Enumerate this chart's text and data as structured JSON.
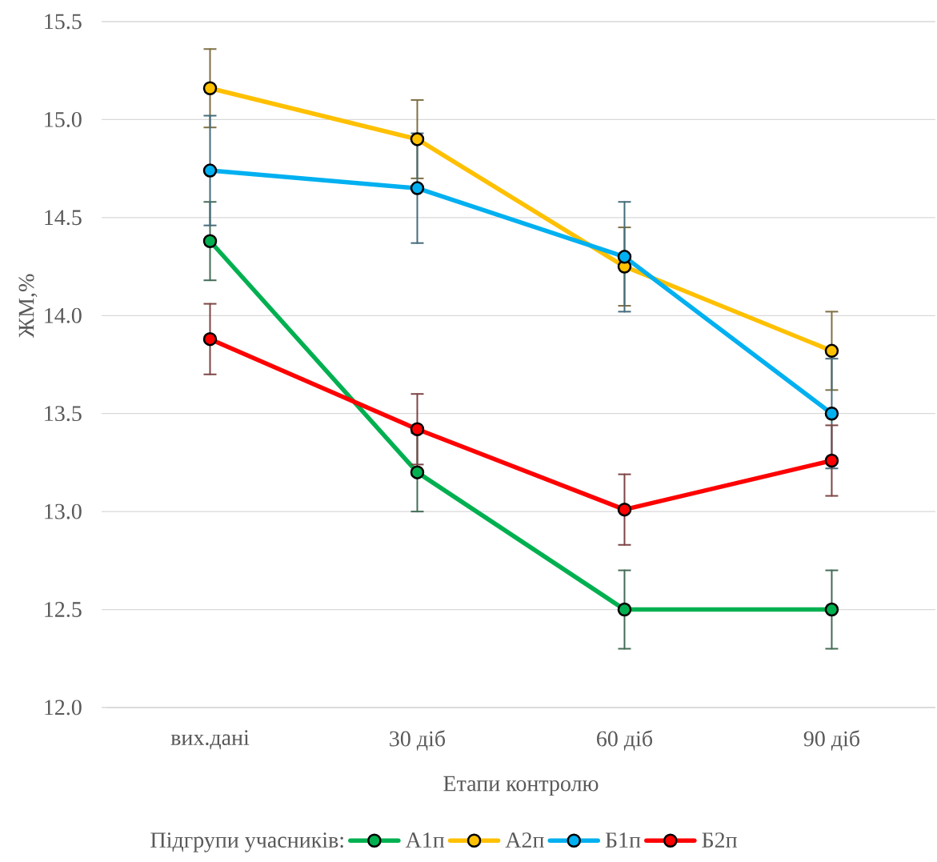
{
  "chart_data": {
    "type": "line",
    "xlabel": "Етапи контролю",
    "ylabel": "ЖМ,%",
    "legend_title": "Підгрупи учасників:",
    "categories": [
      "вих.дані",
      "30 діб",
      "60 діб",
      "90 діб"
    ],
    "series": [
      {
        "name": "А1п",
        "color": "#00b050",
        "values": [
          14.38,
          13.2,
          12.5,
          12.5
        ],
        "errors": [
          0.2,
          0.2,
          0.2,
          0.2
        ]
      },
      {
        "name": "А2п",
        "color": "#ffc000",
        "values": [
          15.16,
          14.9,
          14.25,
          13.82
        ],
        "errors": [
          0.2,
          0.2,
          0.2,
          0.2
        ]
      },
      {
        "name": "Б1п",
        "color": "#00b0f0",
        "values": [
          14.74,
          14.65,
          14.3,
          13.5
        ],
        "errors": [
          0.28,
          0.28,
          0.28,
          0.28
        ]
      },
      {
        "name": "Б2п",
        "color": "#ff0000",
        "values": [
          13.88,
          13.42,
          13.01,
          13.26
        ],
        "errors": [
          0.18,
          0.18,
          0.18,
          0.18
        ]
      }
    ],
    "ylim": [
      12.0,
      15.5
    ],
    "yticks": [
      {
        "value": 12,
        "label": "12.0"
      },
      12.5,
      {
        "value": 13,
        "label": "13.0"
      },
      13.5,
      {
        "value": 14,
        "label": "14.0"
      },
      14.5,
      {
        "value": 15,
        "label": "15.0"
      },
      15.5
    ],
    "grid": "y",
    "legend": "bottom",
    "marker": "circle",
    "line_style": "solid"
  }
}
